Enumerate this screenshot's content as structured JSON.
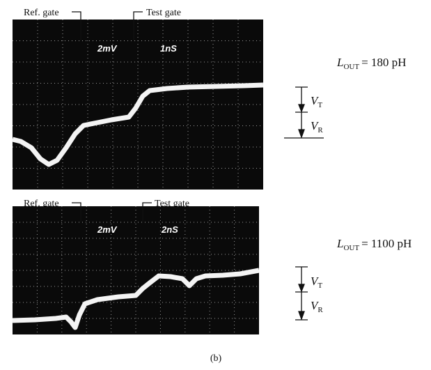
{
  "panels": [
    {
      "ref_gate": "Ref. gate",
      "test_gate": "Test gate",
      "volts_div": "2mV",
      "time_div": "1nS",
      "inductance": {
        "symbol": "L",
        "subscript": "OUT",
        "value": "= 180 pH"
      },
      "vt": {
        "symbol": "V",
        "subscript": "T"
      },
      "vr": {
        "symbol": "V",
        "subscript": "R"
      }
    },
    {
      "ref_gate": "Ref. gate",
      "test_gate": "Test gate",
      "volts_div": "2mV",
      "time_div": "2nS",
      "inductance": {
        "symbol": "L",
        "subscript": "OUT",
        "value": "= 1100 pH"
      },
      "vt": {
        "symbol": "V",
        "subscript": "T"
      },
      "vr": {
        "symbol": "V",
        "subscript": "R"
      }
    }
  ],
  "caption": "(b)"
}
